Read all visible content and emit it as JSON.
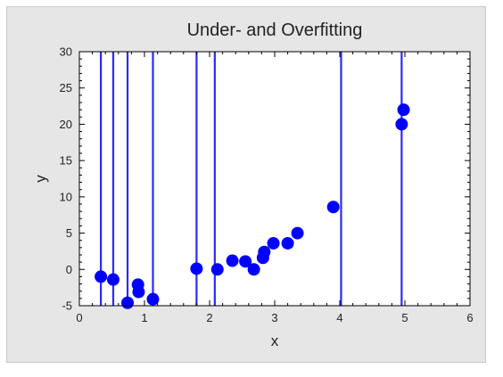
{
  "chart_data": {
    "type": "scatter",
    "title": "Under- and Overfitting",
    "xlabel": "x",
    "ylabel": "y",
    "xlim": [
      0,
      6
    ],
    "ylim": [
      -5,
      30
    ],
    "xticks": [
      0,
      1,
      2,
      3,
      4,
      5,
      6
    ],
    "yticks": [
      -5,
      0,
      5,
      10,
      15,
      20,
      25,
      30
    ],
    "grid": false,
    "colors": {
      "points": "#0000ff",
      "lines": "#2a2aff",
      "plot_bg": "#ffffff",
      "figure_bg": "#e6e6e6"
    },
    "series": [
      {
        "kind": "points",
        "x": [
          0.33,
          0.52,
          0.74,
          0.9,
          0.91,
          1.13,
          1.8,
          2.12,
          2.35,
          2.55,
          2.68,
          2.82,
          2.84,
          2.98,
          3.2,
          3.35,
          3.9,
          4.95,
          4.98
        ],
        "y": [
          -1.0,
          -1.4,
          -4.6,
          -2.1,
          -3.1,
          -4.1,
          0.1,
          0.0,
          1.2,
          1.1,
          0.0,
          1.6,
          2.4,
          3.6,
          3.6,
          5.0,
          8.6,
          20.0,
          22.0
        ]
      },
      {
        "kind": "vertical-lines",
        "x": [
          0.33,
          0.52,
          0.74,
          1.13,
          1.8,
          2.08,
          4.02,
          4.95
        ]
      }
    ]
  }
}
